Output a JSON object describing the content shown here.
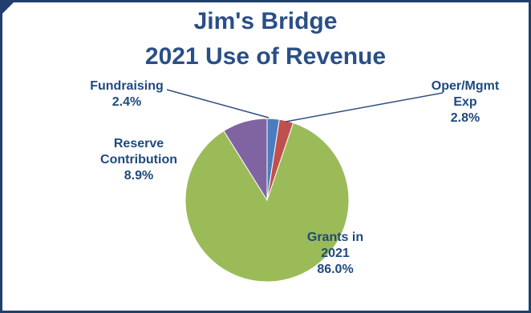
{
  "chart_data": {
    "type": "pie",
    "title": [
      "Jim's Bridge",
      "2021 Use of Revenue"
    ],
    "start_angle_deg": 0,
    "direction": "clockwise",
    "slices": [
      {
        "label_lines": [
          "Fundraising"
        ],
        "value_text": "2.4%",
        "value": 2.4,
        "color": "#4a7dbf"
      },
      {
        "label_lines": [
          "Oper/Mgmt",
          "Exp"
        ],
        "value_text": "2.8%",
        "value": 2.8,
        "color": "#c0504d"
      },
      {
        "label_lines": [
          "Grants in",
          "2021"
        ],
        "value_text": "86.0%",
        "value": 86.0,
        "color": "#9bbb59"
      },
      {
        "label_lines": [
          "Reserve",
          "Contribution"
        ],
        "value_text": "8.9%",
        "value": 8.9,
        "color": "#8064a2"
      }
    ],
    "label_color": "#1f497d",
    "title_color": "#2a4f86",
    "frame_color": "#1f3f6e"
  }
}
